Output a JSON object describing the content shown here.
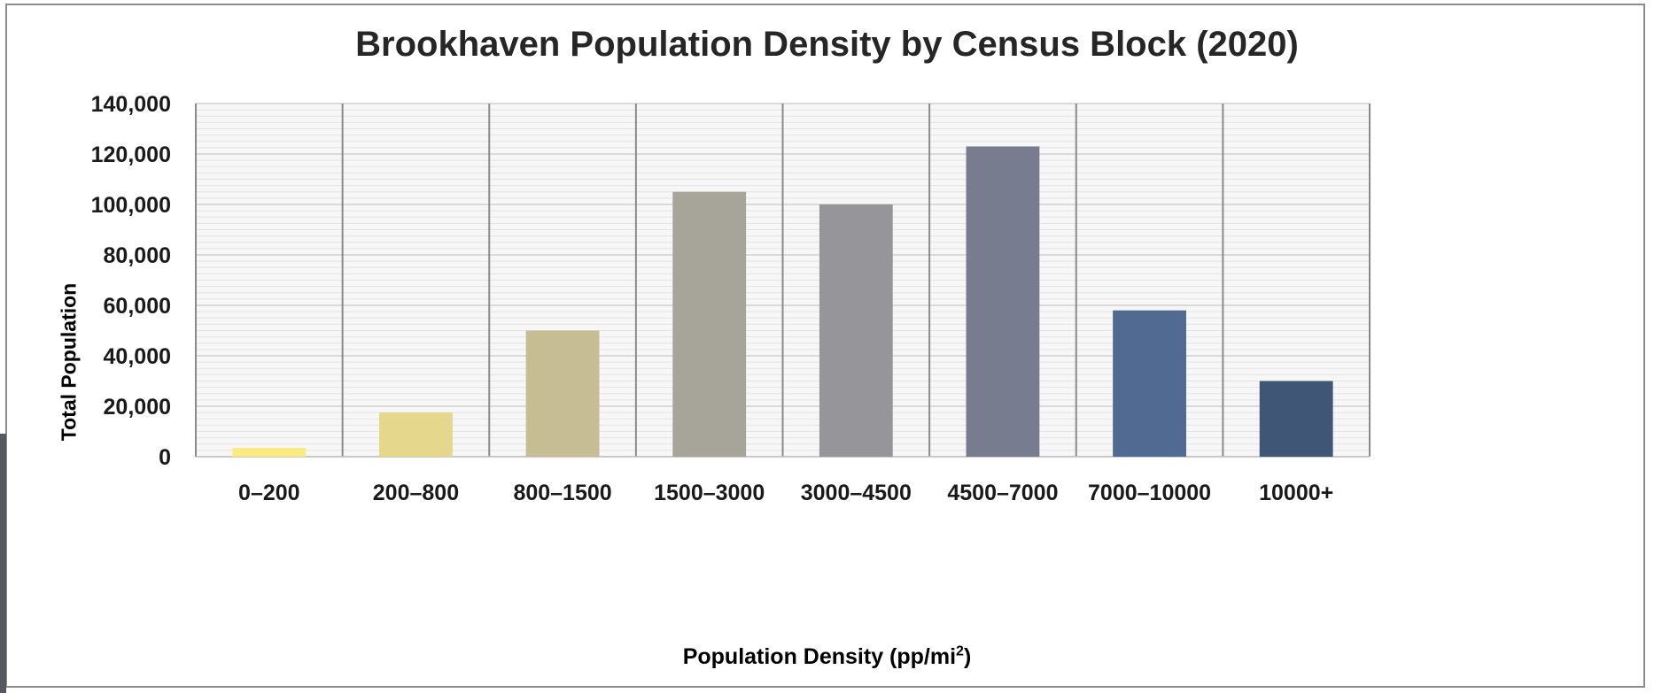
{
  "chart_data": {
    "type": "bar",
    "title": "Brookhaven Population Density by Census Block (2020)",
    "xlabel": "Population Density (pp/mi",
    "xlabel_superscript": "2",
    "xlabel_suffix": ")",
    "ylabel": "Total Population",
    "categories": [
      "0–200",
      "200–800",
      "800–1500",
      "1500–3000",
      "3000–4500",
      "4500–7000",
      "7000–10000",
      "10000+"
    ],
    "values": [
      3500,
      17500,
      50000,
      105000,
      100000,
      123000,
      58000,
      30000
    ],
    "colors": [
      "#fbe981",
      "#e5d78c",
      "#c6bd94",
      "#a7a59a",
      "#96969a",
      "#777d8f",
      "#506a92",
      "#3f5676"
    ],
    "ylim": [
      0,
      140000
    ],
    "yticks": [
      0,
      20000,
      40000,
      60000,
      80000,
      100000,
      120000,
      140000
    ],
    "ytick_labels": [
      "0",
      "20,000",
      "40,000",
      "60,000",
      "80,000",
      "100,000",
      "120,000",
      "140,000"
    ],
    "grid": true,
    "legend": "none"
  }
}
